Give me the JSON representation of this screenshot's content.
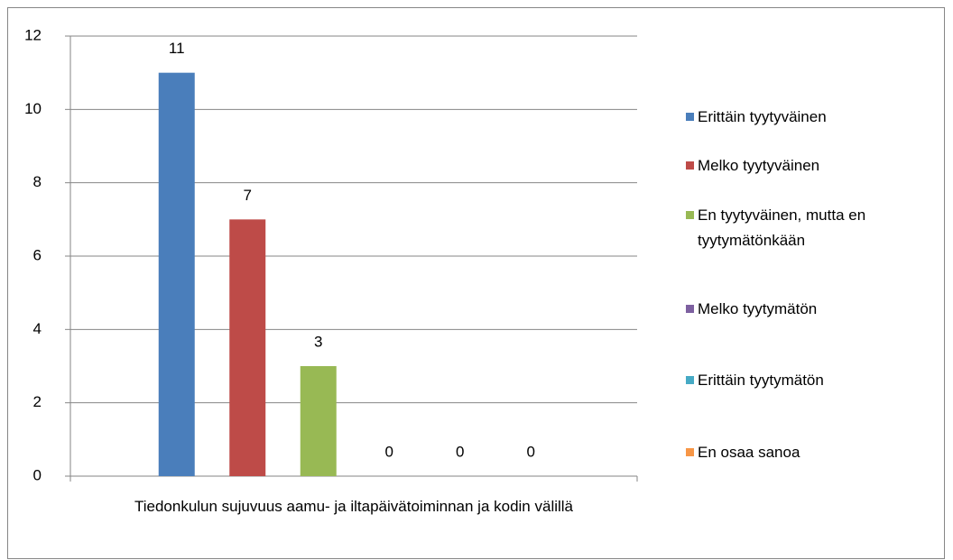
{
  "chart_data": {
    "type": "bar",
    "categories": [
      "Tiedonkulun sujuvuus aamu- ja iltapäivätoiminnan ja kodin välillä"
    ],
    "series": [
      {
        "name": "Erittäin tyytyväinen",
        "color": "#4a7ebb",
        "values": [
          11
        ]
      },
      {
        "name": "Melko tyytyväinen",
        "color": "#be4b48",
        "values": [
          7
        ]
      },
      {
        "name": "En tyytyväinen, mutta en tyytymätönkään",
        "color": "#98b954",
        "values": [
          3
        ]
      },
      {
        "name": "Melko tyytymätön",
        "color": "#7d60a0",
        "values": [
          0
        ]
      },
      {
        "name": "Erittäin tyytymätön",
        "color": "#46aac5",
        "values": [
          0
        ]
      },
      {
        "name": "En osaa sanoa",
        "color": "#f79646",
        "values": [
          0
        ]
      }
    ],
    "ylim": [
      0,
      12
    ],
    "yticks": [
      0,
      2,
      4,
      6,
      8,
      10,
      12
    ],
    "grid": true,
    "legend": "right"
  }
}
